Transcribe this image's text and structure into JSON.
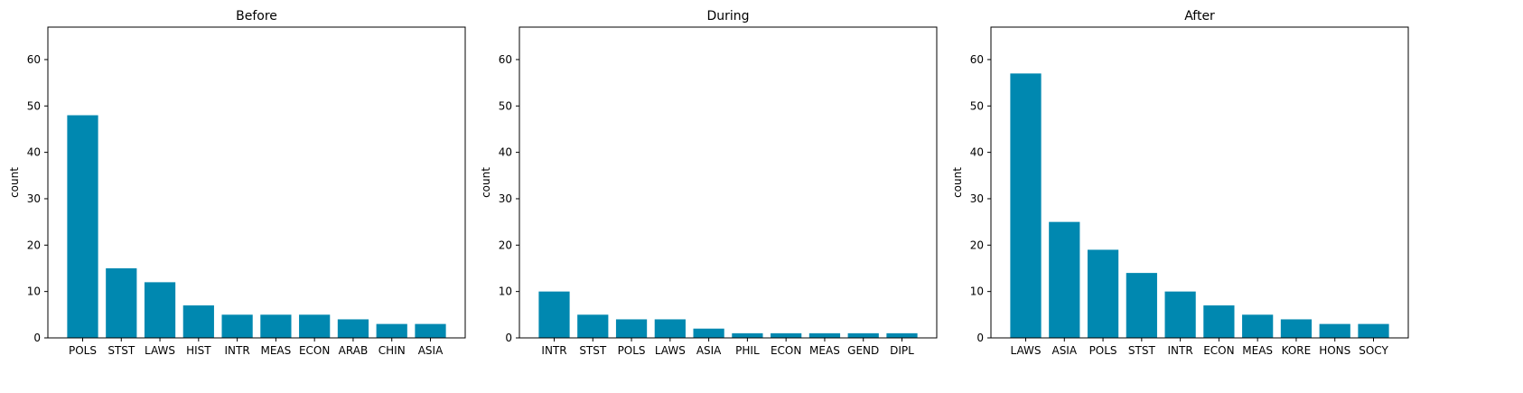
{
  "bar_color": "#0088b0",
  "chart_data": [
    {
      "type": "bar",
      "title": "Before",
      "xlabel": "",
      "ylabel": "count",
      "ylim": [
        0,
        67
      ],
      "yticks": [
        0,
        10,
        20,
        30,
        40,
        50,
        60
      ],
      "grid": false,
      "categories": [
        "POLS",
        "STST",
        "LAWS",
        "HIST",
        "INTR",
        "MEAS",
        "ECON",
        "ARAB",
        "CHIN",
        "ASIA"
      ],
      "values": [
        48,
        15,
        12,
        7,
        5,
        5,
        5,
        4,
        3,
        3
      ]
    },
    {
      "type": "bar",
      "title": "During",
      "xlabel": "",
      "ylabel": "count",
      "ylim": [
        0,
        67
      ],
      "yticks": [
        0,
        10,
        20,
        30,
        40,
        50,
        60
      ],
      "grid": false,
      "categories": [
        "INTR",
        "STST",
        "POLS",
        "LAWS",
        "ASIA",
        "PHIL",
        "ECON",
        "MEAS",
        "GEND",
        "DIPL"
      ],
      "values": [
        10,
        5,
        4,
        4,
        2,
        1,
        1,
        1,
        1,
        1
      ]
    },
    {
      "type": "bar",
      "title": "After",
      "xlabel": "",
      "ylabel": "count",
      "ylim": [
        0,
        67
      ],
      "yticks": [
        0,
        10,
        20,
        30,
        40,
        50,
        60
      ],
      "grid": false,
      "categories": [
        "LAWS",
        "ASIA",
        "POLS",
        "STST",
        "INTR",
        "ECON",
        "MEAS",
        "KORE",
        "HONS",
        "SOCY"
      ],
      "values": [
        57,
        25,
        19,
        14,
        10,
        7,
        5,
        4,
        3,
        3
      ]
    }
  ]
}
